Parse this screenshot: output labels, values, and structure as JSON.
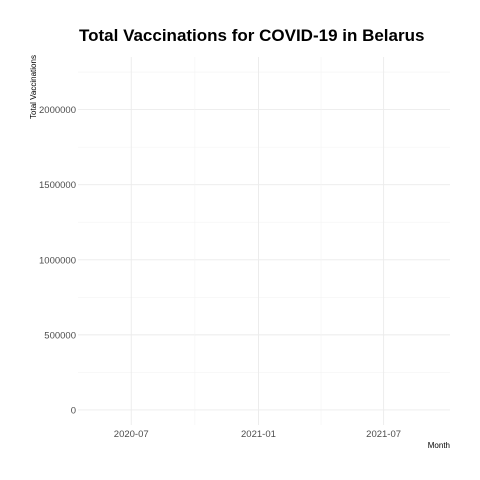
{
  "chart_data": {
    "type": "line",
    "title": "Total Vaccinations for COVID-19 in Belarus",
    "xlabel": "Month",
    "ylabel": "Total Vaccinations",
    "x_ticks": [
      "2020-07",
      "2021-01",
      "2021-07"
    ],
    "y_ticks": [
      0,
      500000,
      1000000,
      1500000,
      2000000
    ],
    "y_tick_labels": [
      "0",
      "500000",
      "1000000",
      "1500000",
      "2000000"
    ],
    "xlim": [
      "2020-04-15",
      "2021-10-05"
    ],
    "ylim": [
      -100000,
      2350000
    ],
    "grid": true,
    "series": [
      {
        "values": []
      }
    ]
  }
}
